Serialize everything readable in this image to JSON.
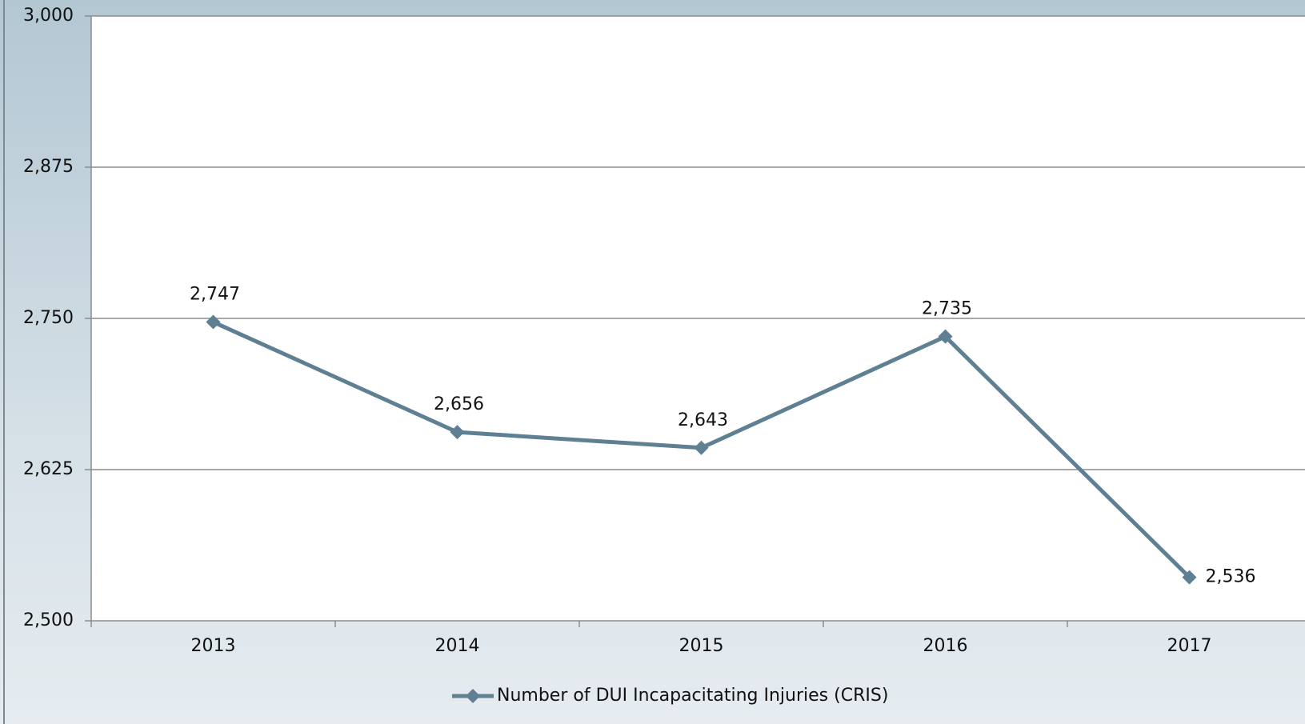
{
  "chart_data": {
    "type": "line",
    "categories": [
      "2013",
      "2014",
      "2015",
      "2016",
      "2017"
    ],
    "series": [
      {
        "name": "Number of DUI Incapacitating Injuries (CRIS)",
        "color": "#5f7f92",
        "values": [
          2747,
          2656,
          2643,
          2735,
          2536
        ],
        "value_labels": [
          "2,747",
          "2,656",
          "2,643",
          "2,735",
          "2,536"
        ]
      }
    ],
    "ylim": [
      2500,
      3000
    ],
    "yticks": [
      {
        "value": 2500,
        "label": "2,500"
      },
      {
        "value": 2625,
        "label": "2,625"
      },
      {
        "value": 2750,
        "label": "2,750"
      },
      {
        "value": 2875,
        "label": "2,875"
      },
      {
        "value": 3000,
        "label": "3,000"
      }
    ],
    "grid": true,
    "legend": "bottom"
  }
}
